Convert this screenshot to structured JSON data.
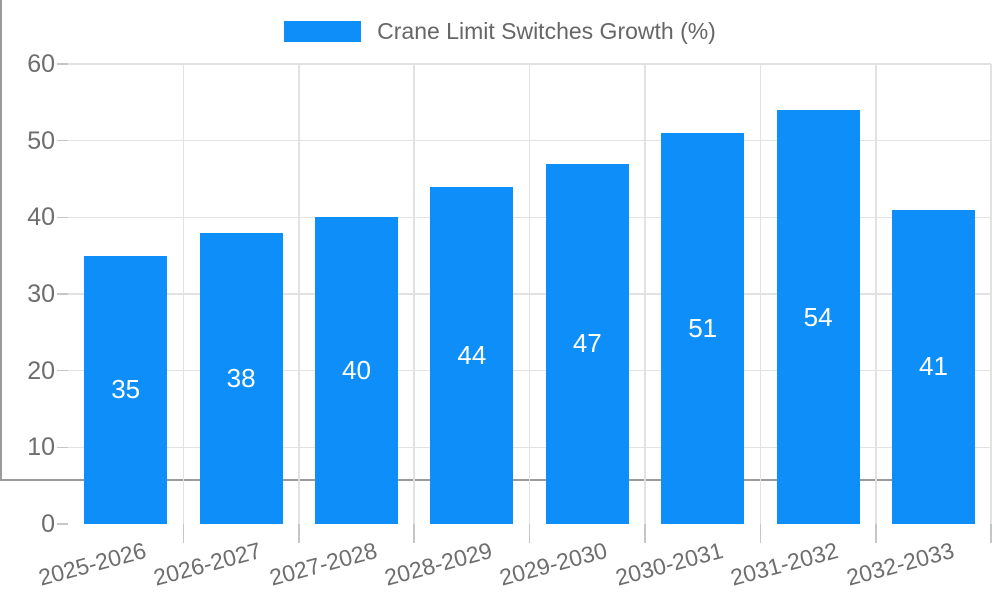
{
  "legend": {
    "label": "Crane Limit Switches Growth (%)",
    "swatch_color": "#0d8ef9"
  },
  "chart_data": {
    "type": "bar",
    "title": "Crane Limit Switches Growth (%)",
    "categories": [
      "2025-2026",
      "2026-2027",
      "2027-2028",
      "2028-2029",
      "2029-2030",
      "2030-2031",
      "2031-2032",
      "2032-2033"
    ],
    "values": [
      35,
      38,
      40,
      44,
      47,
      51,
      54,
      41
    ],
    "xlabel": "",
    "ylabel": "",
    "ylim": [
      0,
      60
    ],
    "yticks": [
      0,
      10,
      20,
      30,
      40,
      50,
      60
    ],
    "grid": true,
    "legend_position": "top-center",
    "bar_color": "#0d8ef9",
    "value_label_color": "#ffffff",
    "value_labels_inside": true
  },
  "colors": {
    "axis": "#9b9b9b",
    "grid": "#e2e2e2",
    "tick": "#c6c6c6",
    "text": "#6e6e6e",
    "background": "#ffffff"
  }
}
